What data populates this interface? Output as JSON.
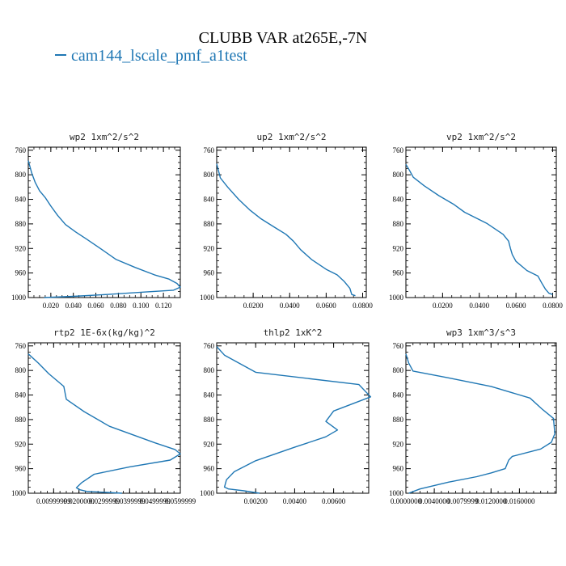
{
  "figure": {
    "title": "CLUBB VAR at265E,-7N",
    "legend_label": "cam144_lscale_pmf_a1test",
    "line_color": "#1f77b4"
  },
  "chart_data": [
    {
      "type": "line",
      "title": "wp2   1xm^2/s^2",
      "xlim": [
        0,
        0.135
      ],
      "ylim": [
        1000,
        755
      ],
      "y_inverted": true,
      "xticks": [
        0.02,
        0.04,
        0.06,
        0.08,
        0.1,
        0.12
      ],
      "xtick_labels": [
        "0.020",
        "0.040",
        "0.060",
        "0.080",
        "0.100",
        "0.120"
      ],
      "yticks": [
        760,
        800,
        840,
        880,
        920,
        960,
        1000
      ],
      "ytick_labels": [
        "760",
        "800",
        "840",
        "880",
        "920",
        "960",
        "1000"
      ],
      "series": [
        {
          "x": [
            0.0,
            0.003,
            0.006,
            0.01,
            0.015,
            0.02,
            0.026,
            0.033,
            0.042,
            0.052,
            0.064,
            0.078,
            0.095,
            0.112,
            0.125,
            0.132,
            0.135,
            0.129,
            0.103,
            0.07,
            0.04,
            0.014
          ],
          "y": [
            777,
            797,
            812,
            826,
            837,
            851,
            866,
            881,
            893,
            905,
            920,
            938,
            951,
            963,
            970,
            977,
            983,
            988,
            991,
            995,
            998,
            1000
          ]
        }
      ]
    },
    {
      "type": "line",
      "title": "up2   1xm^2/s^2",
      "xlim": [
        0,
        0.082
      ],
      "ylim": [
        1000,
        755
      ],
      "y_inverted": true,
      "xticks": [
        0.02,
        0.04,
        0.06,
        0.08
      ],
      "xtick_labels": [
        "0.0200",
        "0.0400",
        "0.0600",
        "0.0800"
      ],
      "yticks": [
        760,
        800,
        840,
        880,
        920,
        960,
        1000
      ],
      "ytick_labels": [
        "760",
        "800",
        "840",
        "880",
        "920",
        "960",
        "1000"
      ],
      "series": [
        {
          "x": [
            0.0,
            0.002,
            0.006,
            0.012,
            0.018,
            0.024,
            0.032,
            0.038,
            0.042,
            0.046,
            0.052,
            0.06,
            0.066,
            0.07,
            0.073,
            0.074,
            0.076
          ],
          "y": [
            782,
            805,
            820,
            840,
            857,
            871,
            886,
            897,
            908,
            922,
            938,
            954,
            963,
            974,
            985,
            995,
            997
          ]
        }
      ]
    },
    {
      "type": "line",
      "title": "vp2   1xm^2/s^2",
      "xlim": [
        0,
        0.082
      ],
      "ylim": [
        1000,
        755
      ],
      "y_inverted": true,
      "xticks": [
        0.02,
        0.04,
        0.06,
        0.08
      ],
      "xtick_labels": [
        "0.0200",
        "0.0400",
        "0.0600",
        "0.0800"
      ],
      "yticks": [
        760,
        800,
        840,
        880,
        920,
        960,
        1000
      ],
      "ytick_labels": [
        "760",
        "800",
        "840",
        "880",
        "920",
        "960",
        "1000"
      ],
      "series": [
        {
          "x": [
            0.0,
            0.002,
            0.004,
            0.01,
            0.018,
            0.026,
            0.032,
            0.044,
            0.053,
            0.056,
            0.057,
            0.058,
            0.06,
            0.066,
            0.072,
            0.074,
            0.076,
            0.078,
            0.08
          ],
          "y": [
            783,
            793,
            804,
            818,
            834,
            848,
            861,
            879,
            897,
            908,
            920,
            930,
            941,
            956,
            965,
            976,
            986,
            993,
            995
          ]
        }
      ]
    },
    {
      "type": "line",
      "title": "rtp2   1E-6x(kg/kg)^2",
      "xlim": [
        0,
        0.06
      ],
      "ylim": [
        1000,
        755
      ],
      "y_inverted": true,
      "xticks": [
        0.01,
        0.02,
        0.03,
        0.04,
        0.05,
        0.06
      ],
      "xtick_labels": [
        "0.00999999",
        "0.0200000",
        "0.0299999",
        "0.0399999",
        "0.0499999",
        "0.0599999"
      ],
      "yticks": [
        760,
        800,
        840,
        880,
        920,
        960,
        1000
      ],
      "ytick_labels": [
        "760",
        "800",
        "840",
        "880",
        "920",
        "960",
        "1000"
      ],
      "series": [
        {
          "x": [
            0.0,
            0.004,
            0.008,
            0.014,
            0.015,
            0.022,
            0.032,
            0.05,
            0.058,
            0.06,
            0.056,
            0.04,
            0.026,
            0.021,
            0.019,
            0.02,
            0.023,
            0.037
          ],
          "y": [
            773,
            788,
            805,
            826,
            847,
            867,
            891,
            918,
            929,
            936,
            946,
            957,
            969,
            983,
            991,
            994,
            997,
            1000
          ]
        }
      ]
    },
    {
      "type": "line",
      "title": "thlp2   1xK^2",
      "xlim": [
        0,
        0.0078
      ],
      "ylim": [
        1000,
        755
      ],
      "y_inverted": true,
      "xticks": [
        0.002,
        0.004,
        0.006
      ],
      "xtick_labels": [
        "0.00200",
        "0.00400",
        "0.00600"
      ],
      "yticks": [
        760,
        800,
        840,
        880,
        920,
        960,
        1000
      ],
      "ytick_labels": [
        "760",
        "800",
        "840",
        "880",
        "920",
        "960",
        "1000"
      ],
      "series": [
        {
          "x": [
            0.0,
            0.0004,
            0.002,
            0.0073,
            0.0079,
            0.006,
            0.0056,
            0.0062,
            0.0056,
            0.004,
            0.002,
            0.0009,
            0.0005,
            0.0004,
            0.0006,
            0.0014,
            0.0022
          ],
          "y": [
            761,
            775,
            803,
            823,
            843,
            866,
            883,
            897,
            908,
            925,
            947,
            965,
            978,
            990,
            993,
            996,
            1000
          ]
        }
      ]
    },
    {
      "type": "line",
      "title": "wp3   1xm^3/s^3",
      "xlim": [
        0,
        0.0212
      ],
      "ylim": [
        1000,
        755
      ],
      "y_inverted": true,
      "xticks": [
        0.0,
        0.004,
        0.008,
        0.012,
        0.016
      ],
      "xtick_labels": [
        "0.0000000",
        "0.0040000",
        "0.0079999",
        "0.0120000",
        "0.0160000"
      ],
      "yticks": [
        760,
        800,
        840,
        880,
        920,
        960,
        1000
      ],
      "ytick_labels": [
        "760",
        "800",
        "840",
        "880",
        "920",
        "960",
        "1000"
      ],
      "series": [
        {
          "x": [
            0.0,
            0.0004,
            0.001,
            0.006,
            0.012,
            0.0175,
            0.0192,
            0.0208,
            0.021,
            0.0205,
            0.019,
            0.015,
            0.0145,
            0.014,
            0.012,
            0.01,
            0.006,
            0.002,
            0.0004
          ],
          "y": [
            773,
            788,
            801,
            812,
            826,
            845,
            863,
            878,
            903,
            917,
            928,
            940,
            946,
            960,
            967,
            973,
            982,
            993,
            1000
          ]
        }
      ]
    }
  ]
}
